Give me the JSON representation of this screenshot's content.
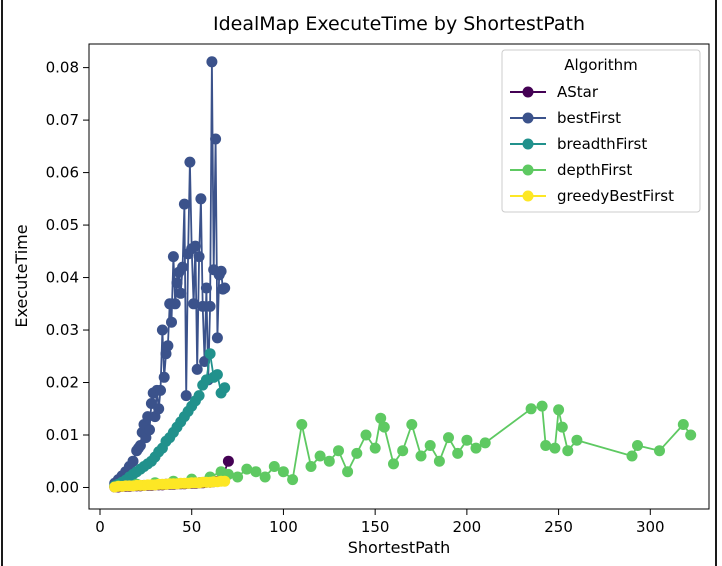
{
  "chart_data": {
    "type": "line",
    "title": "IdealMap ExecuteTime by ShortestPath",
    "xlabel": "ShortestPath",
    "ylabel": "ExecuteTime",
    "xlim": [
      -6,
      332
    ],
    "ylim": [
      -0.0041,
      0.0845
    ],
    "xticks": [
      0,
      50,
      100,
      150,
      200,
      250,
      300
    ],
    "yticks": [
      0.0,
      0.01,
      0.02,
      0.03,
      0.04,
      0.05,
      0.06,
      0.07,
      0.08
    ],
    "xtick_labels": [
      "0",
      "50",
      "100",
      "150",
      "200",
      "250",
      "300"
    ],
    "ytick_labels": [
      "0.00",
      "0.01",
      "0.02",
      "0.03",
      "0.04",
      "0.05",
      "0.06",
      "0.07",
      "0.08"
    ],
    "grid": false,
    "marker": "circle",
    "legend": {
      "title": "Algorithm",
      "placement": "top-right"
    },
    "series": [
      {
        "name": "AStar",
        "color": "#440154",
        "x": [
          8,
          10,
          12,
          14,
          16,
          18,
          20,
          22,
          24,
          26,
          28,
          30,
          32,
          34,
          36,
          38,
          40,
          42,
          44,
          46,
          48,
          50,
          52,
          54,
          56,
          58,
          60,
          62,
          64,
          66,
          70
        ],
        "y": [
          0.0001,
          0.0001,
          0.0002,
          0.0002,
          0.0002,
          0.0003,
          0.0003,
          0.0003,
          0.0004,
          0.0004,
          0.0004,
          0.0005,
          0.0005,
          0.0005,
          0.0006,
          0.0006,
          0.0006,
          0.0007,
          0.0007,
          0.0007,
          0.0008,
          0.0008,
          0.0008,
          0.0009,
          0.0009,
          0.001,
          0.001,
          0.0011,
          0.0012,
          0.0013,
          0.005
        ]
      },
      {
        "name": "bestFirst",
        "color": "#3b528b",
        "x": [
          8,
          10,
          12,
          14,
          16,
          18,
          20,
          21,
          22,
          23,
          24,
          25,
          26,
          27,
          28,
          29,
          30,
          31,
          32,
          33,
          34,
          35,
          36,
          37,
          38,
          39,
          40,
          41,
          42,
          43,
          44,
          45,
          46,
          47,
          48,
          49,
          50,
          51,
          52,
          53,
          54,
          55,
          56,
          57,
          58,
          59,
          60,
          61,
          62,
          63,
          64,
          65,
          66,
          67,
          68
        ],
        "y": [
          0.0008,
          0.0015,
          0.0022,
          0.003,
          0.004,
          0.005,
          0.007,
          0.0075,
          0.008,
          0.0105,
          0.012,
          0.0095,
          0.0135,
          0.011,
          0.016,
          0.018,
          0.0135,
          0.0185,
          0.015,
          0.0185,
          0.03,
          0.021,
          0.0255,
          0.027,
          0.035,
          0.0315,
          0.044,
          0.035,
          0.039,
          0.041,
          0.037,
          0.042,
          0.054,
          0.0175,
          0.0445,
          0.062,
          0.0455,
          0.035,
          0.046,
          0.0225,
          0.044,
          0.055,
          0.0345,
          0.024,
          0.038,
          0.0205,
          0.0345,
          0.0811,
          0.0415,
          0.0664,
          0.0285,
          0.0405,
          0.0412,
          0.0378,
          0.038
        ]
      },
      {
        "name": "breadthFirst",
        "color": "#21918c",
        "x": [
          8,
          10,
          12,
          14,
          16,
          18,
          20,
          22,
          24,
          26,
          28,
          30,
          32,
          34,
          36,
          38,
          40,
          42,
          44,
          46,
          48,
          50,
          52,
          54,
          56,
          58,
          60,
          62,
          64,
          66,
          68
        ],
        "y": [
          0.0003,
          0.0006,
          0.001,
          0.0014,
          0.002,
          0.0025,
          0.003,
          0.0035,
          0.004,
          0.0045,
          0.005,
          0.0058,
          0.0068,
          0.0075,
          0.0088,
          0.0095,
          0.0105,
          0.0115,
          0.0125,
          0.0135,
          0.0145,
          0.0155,
          0.0165,
          0.0175,
          0.0195,
          0.0205,
          0.0255,
          0.021,
          0.0215,
          0.018,
          0.019
        ]
      },
      {
        "name": "depthFirst",
        "color": "#5ec962",
        "x": [
          10,
          20,
          30,
          40,
          50,
          60,
          66,
          70,
          75,
          80,
          85,
          90,
          95,
          100,
          105,
          110,
          115,
          120,
          125,
          130,
          135,
          140,
          145,
          150,
          153,
          155,
          160,
          165,
          170,
          175,
          180,
          185,
          190,
          195,
          200,
          205,
          210,
          235,
          241,
          243,
          248,
          250,
          252,
          255,
          260,
          290,
          293,
          305,
          318,
          322
        ],
        "y": [
          0.0003,
          0.0006,
          0.0009,
          0.0012,
          0.0016,
          0.002,
          0.003,
          0.0025,
          0.002,
          0.0035,
          0.003,
          0.002,
          0.004,
          0.003,
          0.0015,
          0.012,
          0.004,
          0.006,
          0.005,
          0.007,
          0.003,
          0.0065,
          0.01,
          0.0075,
          0.0132,
          0.0115,
          0.0045,
          0.007,
          0.012,
          0.006,
          0.008,
          0.005,
          0.0095,
          0.0065,
          0.009,
          0.0075,
          0.0085,
          0.015,
          0.0155,
          0.008,
          0.0075,
          0.0148,
          0.0115,
          0.007,
          0.009,
          0.006,
          0.008,
          0.007,
          0.012,
          0.01
        ]
      },
      {
        "name": "greedyBestFirst",
        "color": "#fde725",
        "x": [
          8,
          10,
          12,
          14,
          16,
          18,
          20,
          22,
          24,
          26,
          28,
          30,
          32,
          34,
          36,
          38,
          40,
          42,
          44,
          46,
          48,
          50,
          52,
          54,
          56,
          58,
          60,
          62,
          64,
          66,
          68
        ],
        "y": [
          0.0001,
          0.0002,
          0.0002,
          0.0003,
          0.0003,
          0.0003,
          0.0004,
          0.0004,
          0.0004,
          0.0005,
          0.0005,
          0.0005,
          0.0006,
          0.0006,
          0.0006,
          0.0007,
          0.0007,
          0.0007,
          0.0008,
          0.0008,
          0.0008,
          0.0009,
          0.0009,
          0.0009,
          0.001,
          0.001,
          0.001,
          0.0011,
          0.0011,
          0.0012,
          0.0012
        ]
      }
    ]
  }
}
